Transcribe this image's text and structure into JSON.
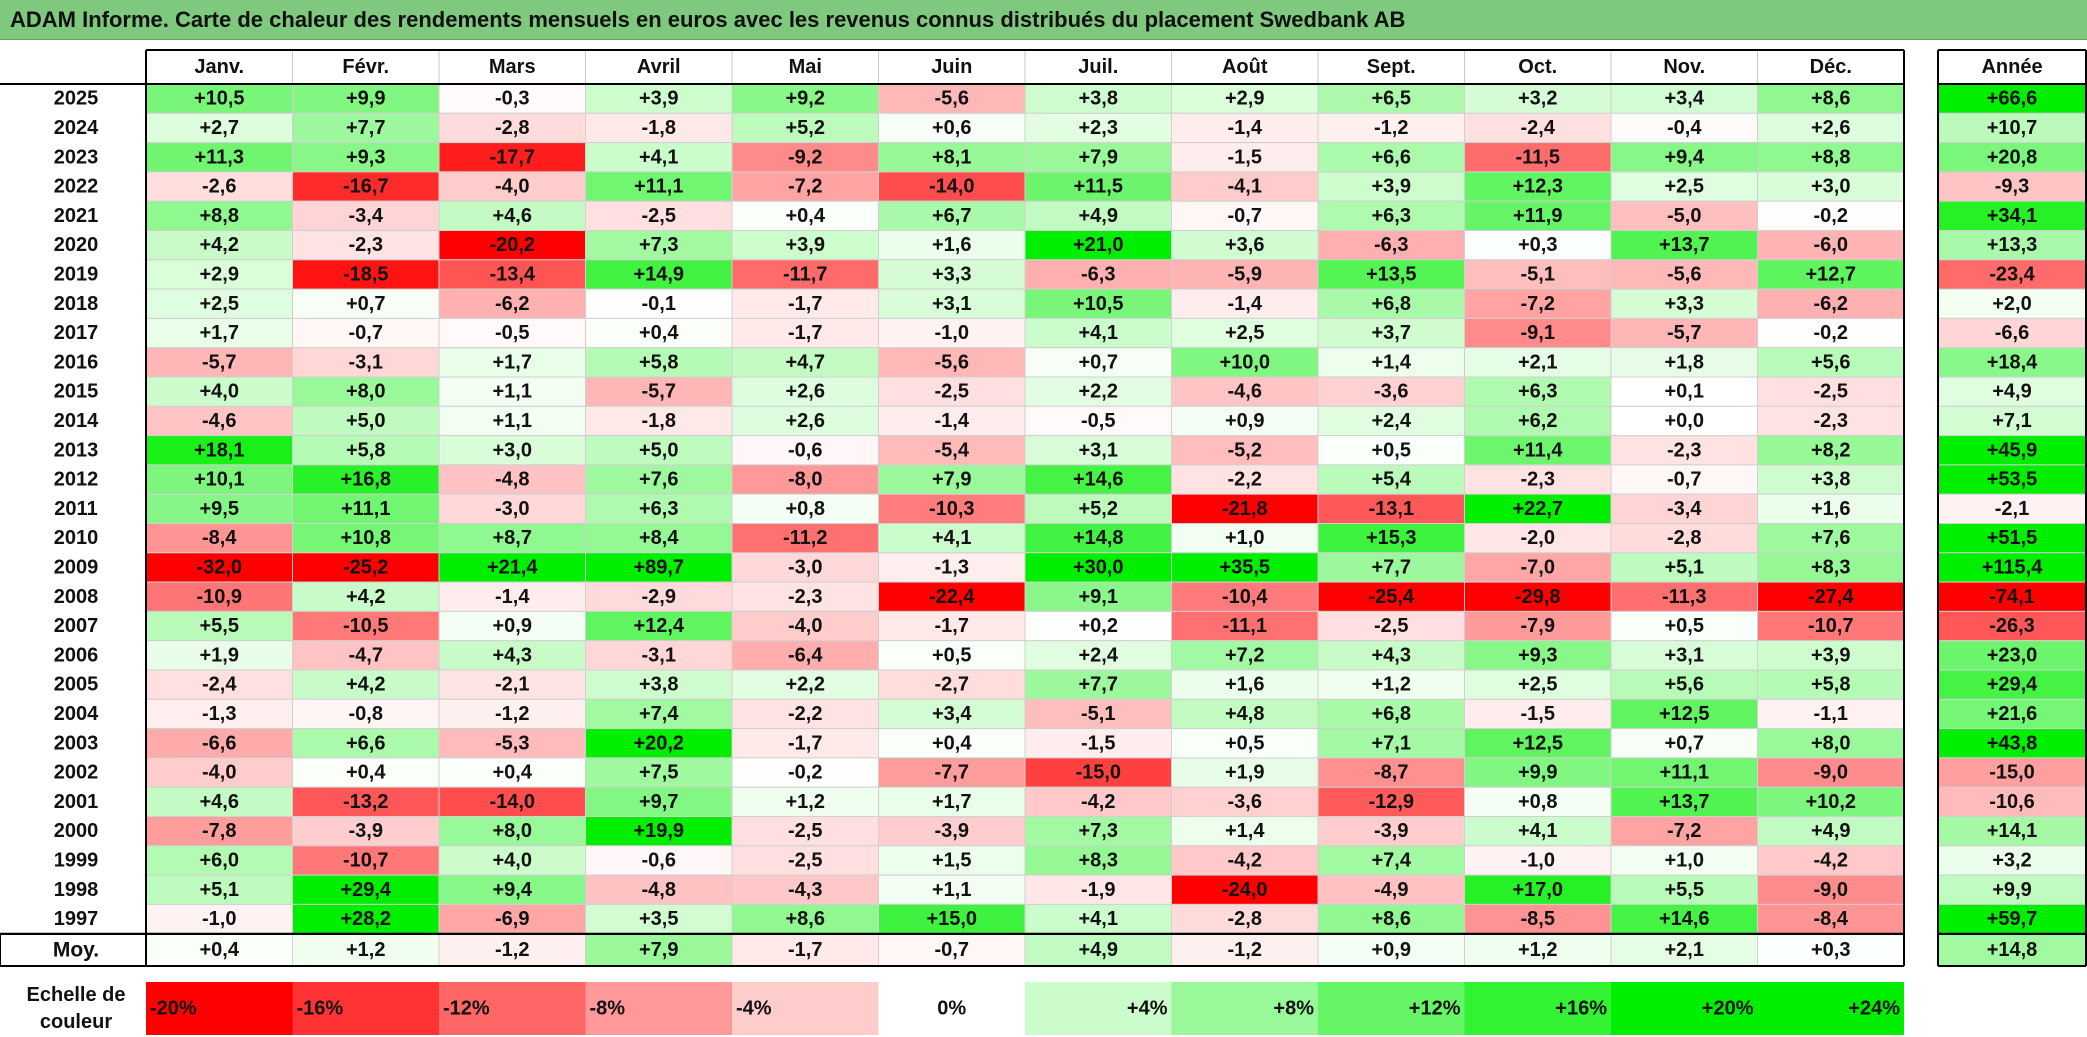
{
  "title": "ADAM Informe. Carte de chaleur des rendements mensuels en euros avec les revenus connus distribués du placement Swedbank AB",
  "chart_data": {
    "type": "heatmap",
    "title": "ADAM Informe. Carte de chaleur des rendements mensuels en euros avec les revenus connus distribués du placement Swedbank AB",
    "columns": [
      "Janv.",
      "Févr.",
      "Mars",
      "Avril",
      "Mai",
      "Juin",
      "Juil.",
      "Août",
      "Sept.",
      "Oct.",
      "Nov.",
      "Déc."
    ],
    "year_header": "Année",
    "rows": [
      {
        "label": "2025",
        "values": [
          "+10,5",
          "+9,9",
          "-0,3",
          "+3,9",
          "+9,2",
          "-5,6",
          "+3,8",
          "+2,9",
          "+6,5",
          "+3,2",
          "+3,4",
          "+8,6"
        ],
        "year": "+66,6"
      },
      {
        "label": "2024",
        "values": [
          "+2,7",
          "+7,7",
          "-2,8",
          "-1,8",
          "+5,2",
          "+0,6",
          "+2,3",
          "-1,4",
          "-1,2",
          "-2,4",
          "-0,4",
          "+2,6"
        ],
        "year": "+10,7"
      },
      {
        "label": "2023",
        "values": [
          "+11,3",
          "+9,3",
          "-17,7",
          "+4,1",
          "-9,2",
          "+8,1",
          "+7,9",
          "-1,5",
          "+6,6",
          "-11,5",
          "+9,4",
          "+8,8"
        ],
        "year": "+20,8"
      },
      {
        "label": "2022",
        "values": [
          "-2,6",
          "-16,7",
          "-4,0",
          "+11,1",
          "-7,2",
          "-14,0",
          "+11,5",
          "-4,1",
          "+3,9",
          "+12,3",
          "+2,5",
          "+3,0"
        ],
        "year": "-9,3"
      },
      {
        "label": "2021",
        "values": [
          "+8,8",
          "-3,4",
          "+4,6",
          "-2,5",
          "+0,4",
          "+6,7",
          "+4,9",
          "-0,7",
          "+6,3",
          "+11,9",
          "-5,0",
          "-0,2"
        ],
        "year": "+34,1"
      },
      {
        "label": "2020",
        "values": [
          "+4,2",
          "-2,3",
          "-20,2",
          "+7,3",
          "+3,9",
          "+1,6",
          "+21,0",
          "+3,6",
          "-6,3",
          "+0,3",
          "+13,7",
          "-6,0"
        ],
        "year": "+13,3"
      },
      {
        "label": "2019",
        "values": [
          "+2,9",
          "-18,5",
          "-13,4",
          "+14,9",
          "-11,7",
          "+3,3",
          "-6,3",
          "-5,9",
          "+13,5",
          "-5,1",
          "-5,6",
          "+12,7"
        ],
        "year": "-23,4"
      },
      {
        "label": "2018",
        "values": [
          "+2,5",
          "+0,7",
          "-6,2",
          "-0,1",
          "-1,7",
          "+3,1",
          "+10,5",
          "-1,4",
          "+6,8",
          "-7,2",
          "+3,3",
          "-6,2"
        ],
        "year": "+2,0"
      },
      {
        "label": "2017",
        "values": [
          "+1,7",
          "-0,7",
          "-0,5",
          "+0,4",
          "-1,7",
          "-1,0",
          "+4,1",
          "+2,5",
          "+3,7",
          "-9,1",
          "-5,7",
          "-0,2"
        ],
        "year": "-6,6"
      },
      {
        "label": "2016",
        "values": [
          "-5,7",
          "-3,1",
          "+1,7",
          "+5,8",
          "+4,7",
          "-5,6",
          "+0,7",
          "+10,0",
          "+1,4",
          "+2,1",
          "+1,8",
          "+5,6"
        ],
        "year": "+18,4"
      },
      {
        "label": "2015",
        "values": [
          "+4,0",
          "+8,0",
          "+1,1",
          "-5,7",
          "+2,6",
          "-2,5",
          "+2,2",
          "-4,6",
          "-3,6",
          "+6,3",
          "+0,1",
          "-2,5"
        ],
        "year": "+4,9"
      },
      {
        "label": "2014",
        "values": [
          "-4,6",
          "+5,0",
          "+1,1",
          "-1,8",
          "+2,6",
          "-1,4",
          "-0,5",
          "+0,9",
          "+2,4",
          "+6,2",
          "+0,0",
          "-2,3"
        ],
        "year": "+7,1"
      },
      {
        "label": "2013",
        "values": [
          "+18,1",
          "+5,8",
          "+3,0",
          "+5,0",
          "-0,6",
          "-5,4",
          "+3,1",
          "-5,2",
          "+0,5",
          "+11,4",
          "-2,3",
          "+8,2"
        ],
        "year": "+45,9"
      },
      {
        "label": "2012",
        "values": [
          "+10,1",
          "+16,8",
          "-4,8",
          "+7,6",
          "-8,0",
          "+7,9",
          "+14,6",
          "-2,2",
          "+5,4",
          "-2,3",
          "-0,7",
          "+3,8"
        ],
        "year": "+53,5"
      },
      {
        "label": "2011",
        "values": [
          "+9,5",
          "+11,1",
          "-3,0",
          "+6,3",
          "+0,8",
          "-10,3",
          "+5,2",
          "-21,8",
          "-13,1",
          "+22,7",
          "-3,4",
          "+1,6"
        ],
        "year": "-2,1"
      },
      {
        "label": "2010",
        "values": [
          "-8,4",
          "+10,8",
          "+8,7",
          "+8,4",
          "-11,2",
          "+4,1",
          "+14,8",
          "+1,0",
          "+15,3",
          "-2,0",
          "-2,8",
          "+7,6"
        ],
        "year": "+51,5"
      },
      {
        "label": "2009",
        "values": [
          "-32,0",
          "-25,2",
          "+21,4",
          "+89,7",
          "-3,0",
          "-1,3",
          "+30,0",
          "+35,5",
          "+7,7",
          "-7,0",
          "+5,1",
          "+8,3"
        ],
        "year": "+115,4"
      },
      {
        "label": "2008",
        "values": [
          "-10,9",
          "+4,2",
          "-1,4",
          "-2,9",
          "-2,3",
          "-22,4",
          "+9,1",
          "-10,4",
          "-25,4",
          "-29,8",
          "-11,3",
          "-27,4"
        ],
        "year": "-74,1"
      },
      {
        "label": "2007",
        "values": [
          "+5,5",
          "-10,5",
          "+0,9",
          "+12,4",
          "-4,0",
          "-1,7",
          "+0,2",
          "-11,1",
          "-2,5",
          "-7,9",
          "+0,5",
          "-10,7"
        ],
        "year": "-26,3"
      },
      {
        "label": "2006",
        "values": [
          "+1,9",
          "-4,7",
          "+4,3",
          "-3,1",
          "-6,4",
          "+0,5",
          "+2,4",
          "+7,2",
          "+4,3",
          "+9,3",
          "+3,1",
          "+3,9"
        ],
        "year": "+23,0"
      },
      {
        "label": "2005",
        "values": [
          "-2,4",
          "+4,2",
          "-2,1",
          "+3,8",
          "+2,2",
          "-2,7",
          "+7,7",
          "+1,6",
          "+1,2",
          "+2,5",
          "+5,6",
          "+5,8"
        ],
        "year": "+29,4"
      },
      {
        "label": "2004",
        "values": [
          "-1,3",
          "-0,8",
          "-1,2",
          "+7,4",
          "-2,2",
          "+3,4",
          "-5,1",
          "+4,8",
          "+6,8",
          "-1,5",
          "+12,5",
          "-1,1"
        ],
        "year": "+21,6"
      },
      {
        "label": "2003",
        "values": [
          "-6,6",
          "+6,6",
          "-5,3",
          "+20,2",
          "-1,7",
          "+0,4",
          "-1,5",
          "+0,5",
          "+7,1",
          "+12,5",
          "+0,7",
          "+8,0"
        ],
        "year": "+43,8"
      },
      {
        "label": "2002",
        "values": [
          "-4,0",
          "+0,4",
          "+0,4",
          "+7,5",
          "-0,2",
          "-7,7",
          "-15,0",
          "+1,9",
          "-8,7",
          "+9,9",
          "+11,1",
          "-9,0"
        ],
        "year": "-15,0"
      },
      {
        "label": "2001",
        "values": [
          "+4,6",
          "-13,2",
          "-14,0",
          "+9,7",
          "+1,2",
          "+1,7",
          "-4,2",
          "-3,6",
          "-12,9",
          "+0,8",
          "+13,7",
          "+10,2"
        ],
        "year": "-10,6"
      },
      {
        "label": "2000",
        "values": [
          "-7,8",
          "-3,9",
          "+8,0",
          "+19,9",
          "-2,5",
          "-3,9",
          "+7,3",
          "+1,4",
          "-3,9",
          "+4,1",
          "-7,2",
          "+4,9"
        ],
        "year": "+14,1"
      },
      {
        "label": "1999",
        "values": [
          "+6,0",
          "-10,7",
          "+4,0",
          "-0,6",
          "-2,5",
          "+1,5",
          "+8,3",
          "-4,2",
          "+7,4",
          "-1,0",
          "+1,0",
          "-4,2"
        ],
        "year": "+3,2"
      },
      {
        "label": "1998",
        "values": [
          "+5,1",
          "+29,4",
          "+9,4",
          "-4,8",
          "-4,3",
          "+1,1",
          "-1,9",
          "-24,0",
          "-4,9",
          "+17,0",
          "+5,5",
          "-9,0"
        ],
        "year": "+9,9"
      },
      {
        "label": "1997",
        "values": [
          "-1,0",
          "+28,2",
          "-6,9",
          "+3,5",
          "+8,6",
          "+15,0",
          "+4,1",
          "-2,8",
          "+8,6",
          "-8,5",
          "+14,6",
          "-8,4"
        ],
        "year": "+59,7"
      }
    ],
    "average": {
      "label": "Moy.",
      "values": [
        "+0,4",
        "+1,2",
        "-1,2",
        "+7,9",
        "-1,7",
        "-0,7",
        "+4,9",
        "-1,2",
        "+0,9",
        "+1,2",
        "+2,1",
        "+0,3"
      ],
      "year": "+14,8"
    },
    "scale": {
      "label_line1": "Echelle de",
      "label_line2": "couleur",
      "items": [
        {
          "label": "-20%",
          "value": -20
        },
        {
          "label": "-16%",
          "value": -16
        },
        {
          "label": "-12%",
          "value": -12
        },
        {
          "label": "-8%",
          "value": -8
        },
        {
          "label": "-4%",
          "value": -4
        },
        {
          "label": "0%",
          "value": 0
        },
        {
          "label": "+4%",
          "value": 4
        },
        {
          "label": "+8%",
          "value": 8
        },
        {
          "label": "+12%",
          "value": 12
        },
        {
          "label": "+16%",
          "value": 16
        },
        {
          "label": "+20%",
          "value": 20
        },
        {
          "label": "+24%",
          "value": 24
        }
      ]
    },
    "colors": {
      "negative_max": "#ff0000",
      "neutral": "#ffffff",
      "positive_max": "#00ee00",
      "title_bar": "#7ec97e"
    }
  }
}
